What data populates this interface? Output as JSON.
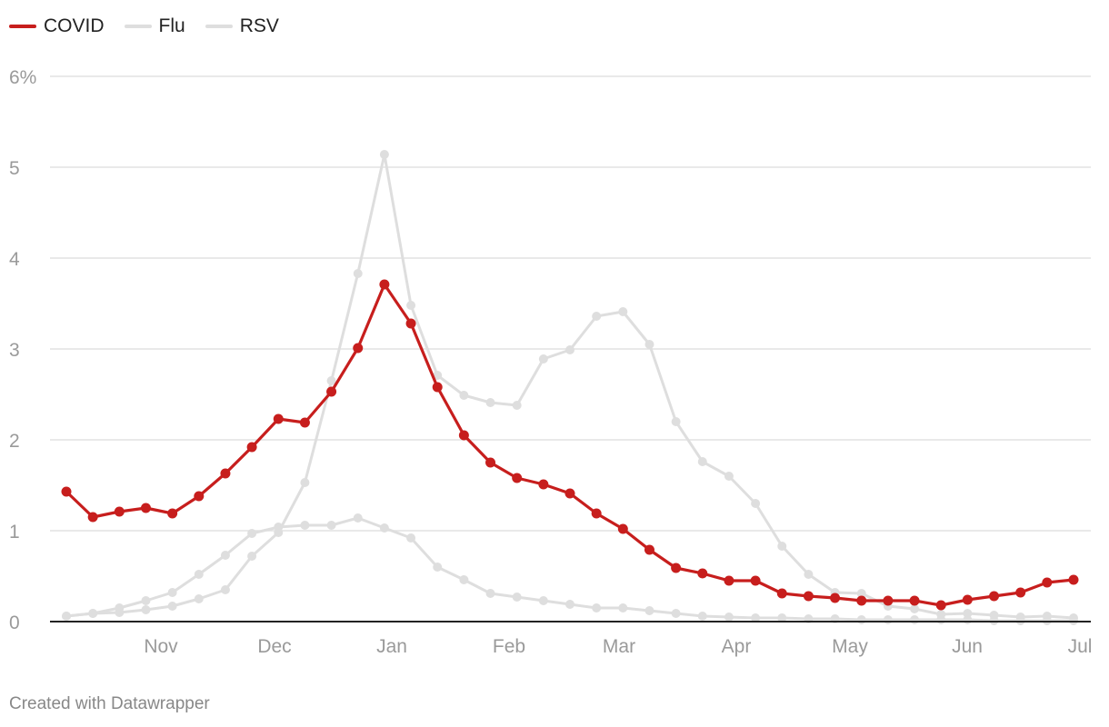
{
  "chart_data": {
    "type": "line",
    "title": "",
    "xlabel": "",
    "ylabel": "",
    "ylim": [
      0,
      6
    ],
    "y_ticks": [
      "0",
      "1",
      "2",
      "3",
      "4",
      "5",
      "6%"
    ],
    "x_month_labels": [
      "Nov",
      "Dec",
      "Jan",
      "Feb",
      "Mar",
      "Apr",
      "May",
      "Jun",
      "Jul"
    ],
    "x_weeks": 39,
    "legend_position": "top-left",
    "series": [
      {
        "name": "COVID",
        "color": "#c71e1d",
        "values": [
          1.43,
          1.15,
          1.21,
          1.25,
          1.19,
          1.38,
          1.63,
          1.92,
          2.23,
          2.19,
          2.53,
          3.01,
          3.71,
          3.28,
          2.58,
          2.05,
          1.75,
          1.58,
          1.51,
          1.41,
          1.19,
          1.02,
          0.79,
          0.59,
          0.53,
          0.45,
          0.45,
          0.31,
          0.28,
          0.26,
          0.23,
          0.23,
          0.23,
          0.18,
          0.24,
          0.28,
          0.32,
          0.43,
          0.46
        ]
      },
      {
        "name": "Flu",
        "color": "#dedede",
        "values": [
          0.06,
          0.09,
          0.15,
          0.23,
          0.32,
          0.52,
          0.73,
          0.97,
          1.04,
          1.06,
          1.06,
          1.14,
          1.03,
          0.92,
          0.6,
          0.46,
          0.31,
          0.27,
          0.23,
          0.19,
          0.15,
          0.15,
          0.12,
          0.09,
          0.06,
          0.05,
          0.04,
          0.04,
          0.03,
          0.03,
          0.02,
          0.02,
          0.02,
          0.02,
          0.02,
          0.01,
          0.01,
          0.01,
          0.01
        ]
      },
      {
        "name": "RSV",
        "color": "#dedede",
        "values": [
          0.06,
          0.09,
          0.1,
          0.13,
          0.17,
          0.25,
          0.35,
          0.72,
          0.98,
          1.53,
          2.65,
          3.83,
          5.14,
          3.48,
          2.71,
          2.49,
          2.41,
          2.38,
          2.89,
          2.99,
          3.36,
          3.41,
          3.05,
          2.2,
          1.76,
          1.6,
          1.3,
          0.83,
          0.52,
          0.32,
          0.31,
          0.17,
          0.14,
          0.08,
          0.09,
          0.07,
          0.05,
          0.06,
          0.04
        ]
      }
    ]
  },
  "footer": "Created with Datawrapper"
}
